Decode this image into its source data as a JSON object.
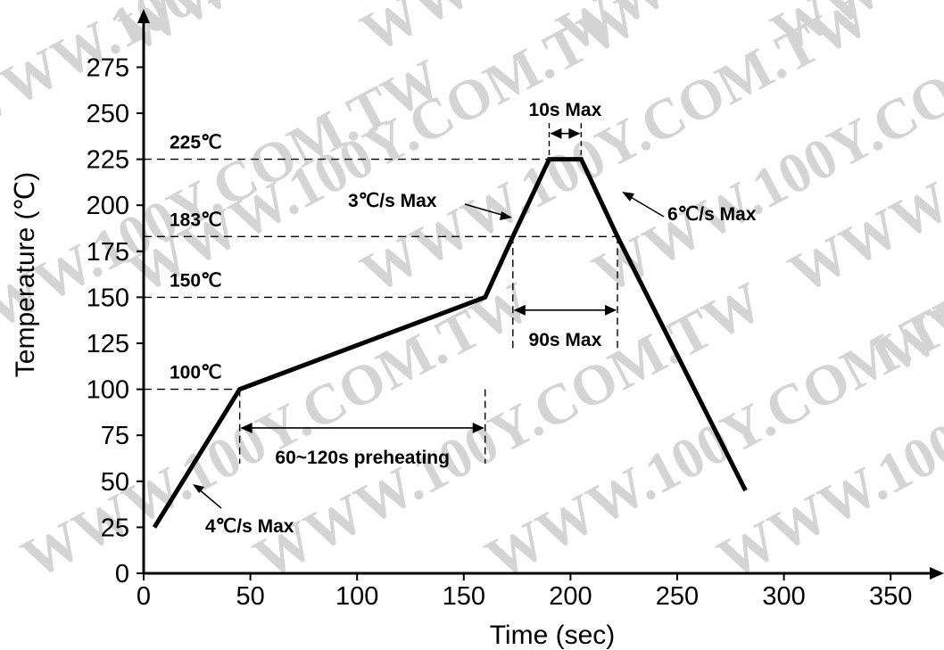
{
  "watermark": "WWW.100Y.COM.TW",
  "chart_data": {
    "type": "line",
    "xlabel": "Time (sec)",
    "ylabel": "Temperature (℃)",
    "xlim": [
      0,
      370
    ],
    "ylim": [
      0,
      280
    ],
    "x_ticks": [
      0,
      50,
      100,
      150,
      200,
      250,
      300,
      350
    ],
    "y_ticks": [
      0,
      25,
      50,
      75,
      100,
      125,
      150,
      175,
      200,
      225,
      250,
      275
    ],
    "grid": false,
    "series": [
      {
        "points": [
          [
            5,
            25
          ],
          [
            45,
            100
          ],
          [
            160,
            150
          ],
          [
            173,
            183
          ],
          [
            190,
            225
          ],
          [
            205,
            225
          ],
          [
            222,
            183
          ],
          [
            282,
            45
          ]
        ]
      }
    ],
    "reference_lines": [
      {
        "label": "100℃",
        "y": 100,
        "x_end": 45
      },
      {
        "label": "150℃",
        "y": 150,
        "x_end": 160
      },
      {
        "label": "183℃",
        "y": 183,
        "x_end": 222
      },
      {
        "label": "225℃",
        "y": 225,
        "x_end": 190
      }
    ],
    "annotations": {
      "preheating": {
        "label": "60~120s preheating",
        "x1": 45,
        "x2": 160,
        "y": 79
      },
      "time_above_liquidus": {
        "label": "90s Max",
        "x1": 173,
        "x2": 222,
        "y": 143
      },
      "peak": {
        "label": "10s Max",
        "x1": 190,
        "x2": 205,
        "y": 239
      },
      "ramp_up_1": {
        "label": "4℃/s Max"
      },
      "ramp_up_2": {
        "label": "3℃/s Max"
      },
      "ramp_down": {
        "label": "6℃/s Max"
      }
    }
  }
}
